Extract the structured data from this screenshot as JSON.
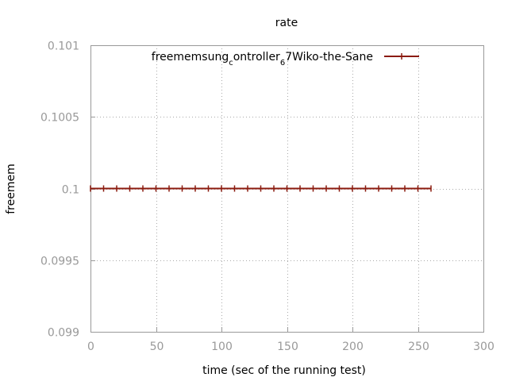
{
  "chart_data": {
    "type": "line",
    "title": "rate",
    "xlabel": "time (sec of the running test)",
    "ylabel": "freemem",
    "xlim": [
      0,
      300
    ],
    "ylim": [
      0.099,
      0.101
    ],
    "xticks": [
      0,
      50,
      100,
      150,
      200,
      250,
      300
    ],
    "yticks": [
      0.099,
      0.0995,
      0.1,
      0.1005,
      0.101
    ],
    "grid": true,
    "legend_placement": "top-right",
    "colors": {
      "series": "#8b1a0e",
      "grid": "#aaaaaa",
      "axis": "#999999"
    },
    "legend": {
      "parts": [
        {
          "text": "freemem",
          "sub": false
        },
        {
          "text": "sung",
          "sub": false
        },
        {
          "text": "c",
          "sub": true
        },
        {
          "text": "ontroller",
          "sub": false
        },
        {
          "text": "6",
          "sub": true
        },
        {
          "text": "7",
          "sub": false
        },
        {
          "text": "Wiko-the-Sane",
          "sub": false
        }
      ]
    },
    "series": [
      {
        "x": [
          0,
          10,
          20,
          30,
          40,
          50,
          60,
          70,
          80,
          90,
          100,
          110,
          120,
          130,
          140,
          150,
          160,
          170,
          180,
          190,
          200,
          210,
          220,
          230,
          240,
          250,
          260
        ],
        "y": [
          0.1,
          0.1,
          0.1,
          0.1,
          0.1,
          0.1,
          0.1,
          0.1,
          0.1,
          0.1,
          0.1,
          0.1,
          0.1,
          0.1,
          0.1,
          0.1,
          0.1,
          0.1,
          0.1,
          0.1,
          0.1,
          0.1,
          0.1,
          0.1,
          0.1,
          0.1,
          0.1
        ]
      }
    ]
  }
}
